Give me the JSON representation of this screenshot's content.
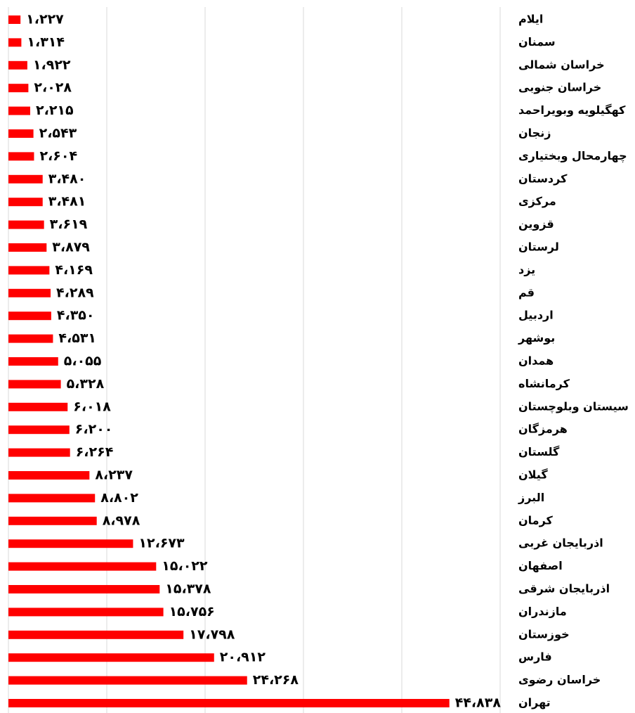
{
  "chart_data": {
    "type": "barh",
    "categories": [
      "ایلام",
      "سمنان",
      "خراسان شمالی",
      "خراسان جنوبی",
      "کهگیلویه وبویراحمد",
      "زنجان",
      "چهارمحال وبختیاری",
      "کردستان",
      "مرکزی",
      "قزوین",
      "لرستان",
      "یزد",
      "قم",
      "اردبیل",
      "بوشهر",
      "همدان",
      "کرمانشاه",
      "سیستان وبلوچستان",
      "هرمزگان",
      "گلستان",
      "گیلان",
      "البرز",
      "کرمان",
      "اذربایجان غربی",
      "اصفهان",
      "اذربایجان شرقی",
      "مازندران",
      "خوزستان",
      "فارس",
      "خراسان رضوی",
      "تهران"
    ],
    "values": [
      1227,
      1314,
      1922,
      2028,
      2215,
      2543,
      2604,
      3480,
      3481,
      3619,
      3879,
      4169,
      4289,
      4350,
      4531,
      5055,
      5328,
      6018,
      6200,
      6264,
      8237,
      8802,
      8978,
      12673,
      15022,
      15378,
      15756,
      17798,
      20912,
      24268,
      44838
    ],
    "value_labels": [
      "۱،۲۲۷",
      "۱،۳۱۴",
      "۱،۹۲۲",
      "۲،۰۲۸",
      "۲،۲۱۵",
      "۲،۵۴۳",
      "۲،۶۰۴",
      "۳،۴۸۰",
      "۳،۴۸۱",
      "۳،۶۱۹",
      "۳،۸۷۹",
      "۴،۱۶۹",
      "۴،۲۸۹",
      "۴،۳۵۰",
      "۴،۵۳۱",
      "۵،۰۵۵",
      "۵،۳۲۸",
      "۶،۰۱۸",
      "۶،۲۰۰",
      "۶،۲۶۴",
      "۸،۲۳۷",
      "۸،۸۰۲",
      "۸،۹۷۸",
      "۱۲،۶۷۳",
      "۱۵،۰۲۲",
      "۱۵،۳۷۸",
      "۱۵،۷۵۶",
      "۱۷،۷۹۸",
      "۲۰،۹۱۲",
      "۲۴،۲۶۸",
      "۴۴،۸۳۸"
    ],
    "color": "#ff0000",
    "xlim": [
      0,
      50000
    ],
    "xticks": [
      0,
      10000,
      20000,
      30000,
      40000,
      50000
    ],
    "grid": true
  }
}
